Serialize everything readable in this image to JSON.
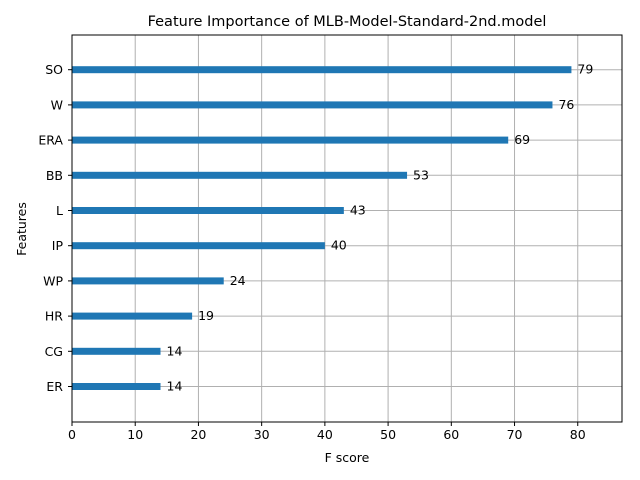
{
  "chart_data": {
    "type": "bar",
    "orientation": "horizontal",
    "title": "Feature Importance of MLB-Model-Standard-2nd.model",
    "xlabel": "F score",
    "ylabel": "Features",
    "categories": [
      "SO",
      "W",
      "ERA",
      "BB",
      "L",
      "IP",
      "WP",
      "HR",
      "CG",
      "ER"
    ],
    "values": [
      79,
      76,
      69,
      53,
      43,
      40,
      24,
      19,
      14,
      14
    ],
    "xlim": [
      0,
      87
    ],
    "xticks": [
      0,
      10,
      20,
      30,
      40,
      50,
      60,
      70,
      80
    ],
    "grid": true,
    "bar_color": "#1f77b4",
    "grid_color": "#b0b0b0"
  }
}
